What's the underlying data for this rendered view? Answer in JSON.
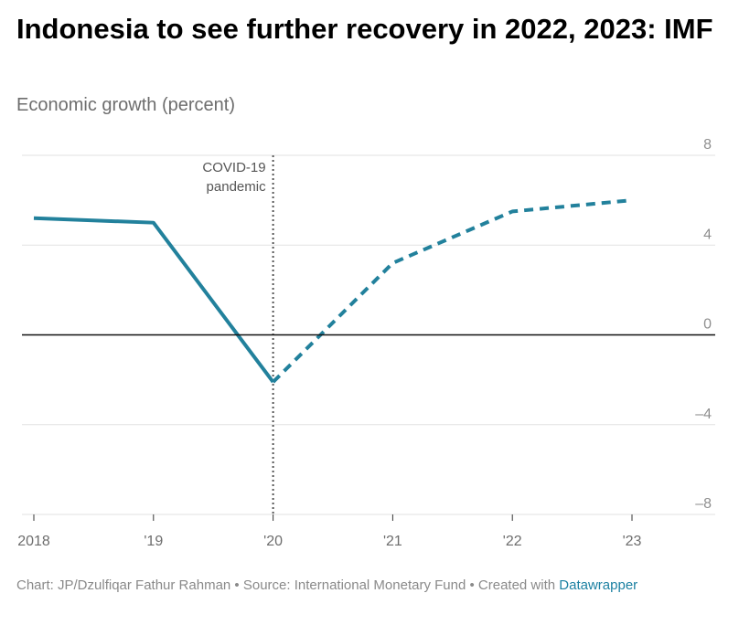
{
  "title": "Indonesia to see further recovery in 2022, 2023: IMF",
  "subtitle": "Economic growth (percent)",
  "footer": {
    "text": "Chart: JP/Dzulfiqar Fathur Rahman • Source: International Monetary Fund • Created with ",
    "link": "Datawrapper"
  },
  "chart_data": {
    "type": "line",
    "title": "Indonesia to see further recovery in 2022, 2023: IMF",
    "ylabel": "Economic growth (percent)",
    "x": [
      "2018",
      "'19",
      "'20",
      "'21",
      "'22",
      "'23"
    ],
    "ylim": [
      -8,
      8
    ],
    "yticks": [
      8,
      4,
      0,
      -4,
      -8
    ],
    "ytick_labels": [
      "8",
      "4",
      "0",
      "–4",
      "–8"
    ],
    "grid": true,
    "series": [
      {
        "segment": "actual",
        "style": "solid",
        "color": "#22819c",
        "x": [
          "2018",
          "'19",
          "'20"
        ],
        "values": [
          5.2,
          5.0,
          -2.1
        ]
      },
      {
        "segment": "projection",
        "style": "dashed",
        "color": "#22819c",
        "x": [
          "'20",
          "'21",
          "'22",
          "'23"
        ],
        "values": [
          -2.1,
          3.2,
          5.5,
          6.0
        ]
      }
    ],
    "annotation": {
      "x": "'20",
      "lines": [
        "COVID-19",
        "pandemic"
      ]
    }
  }
}
